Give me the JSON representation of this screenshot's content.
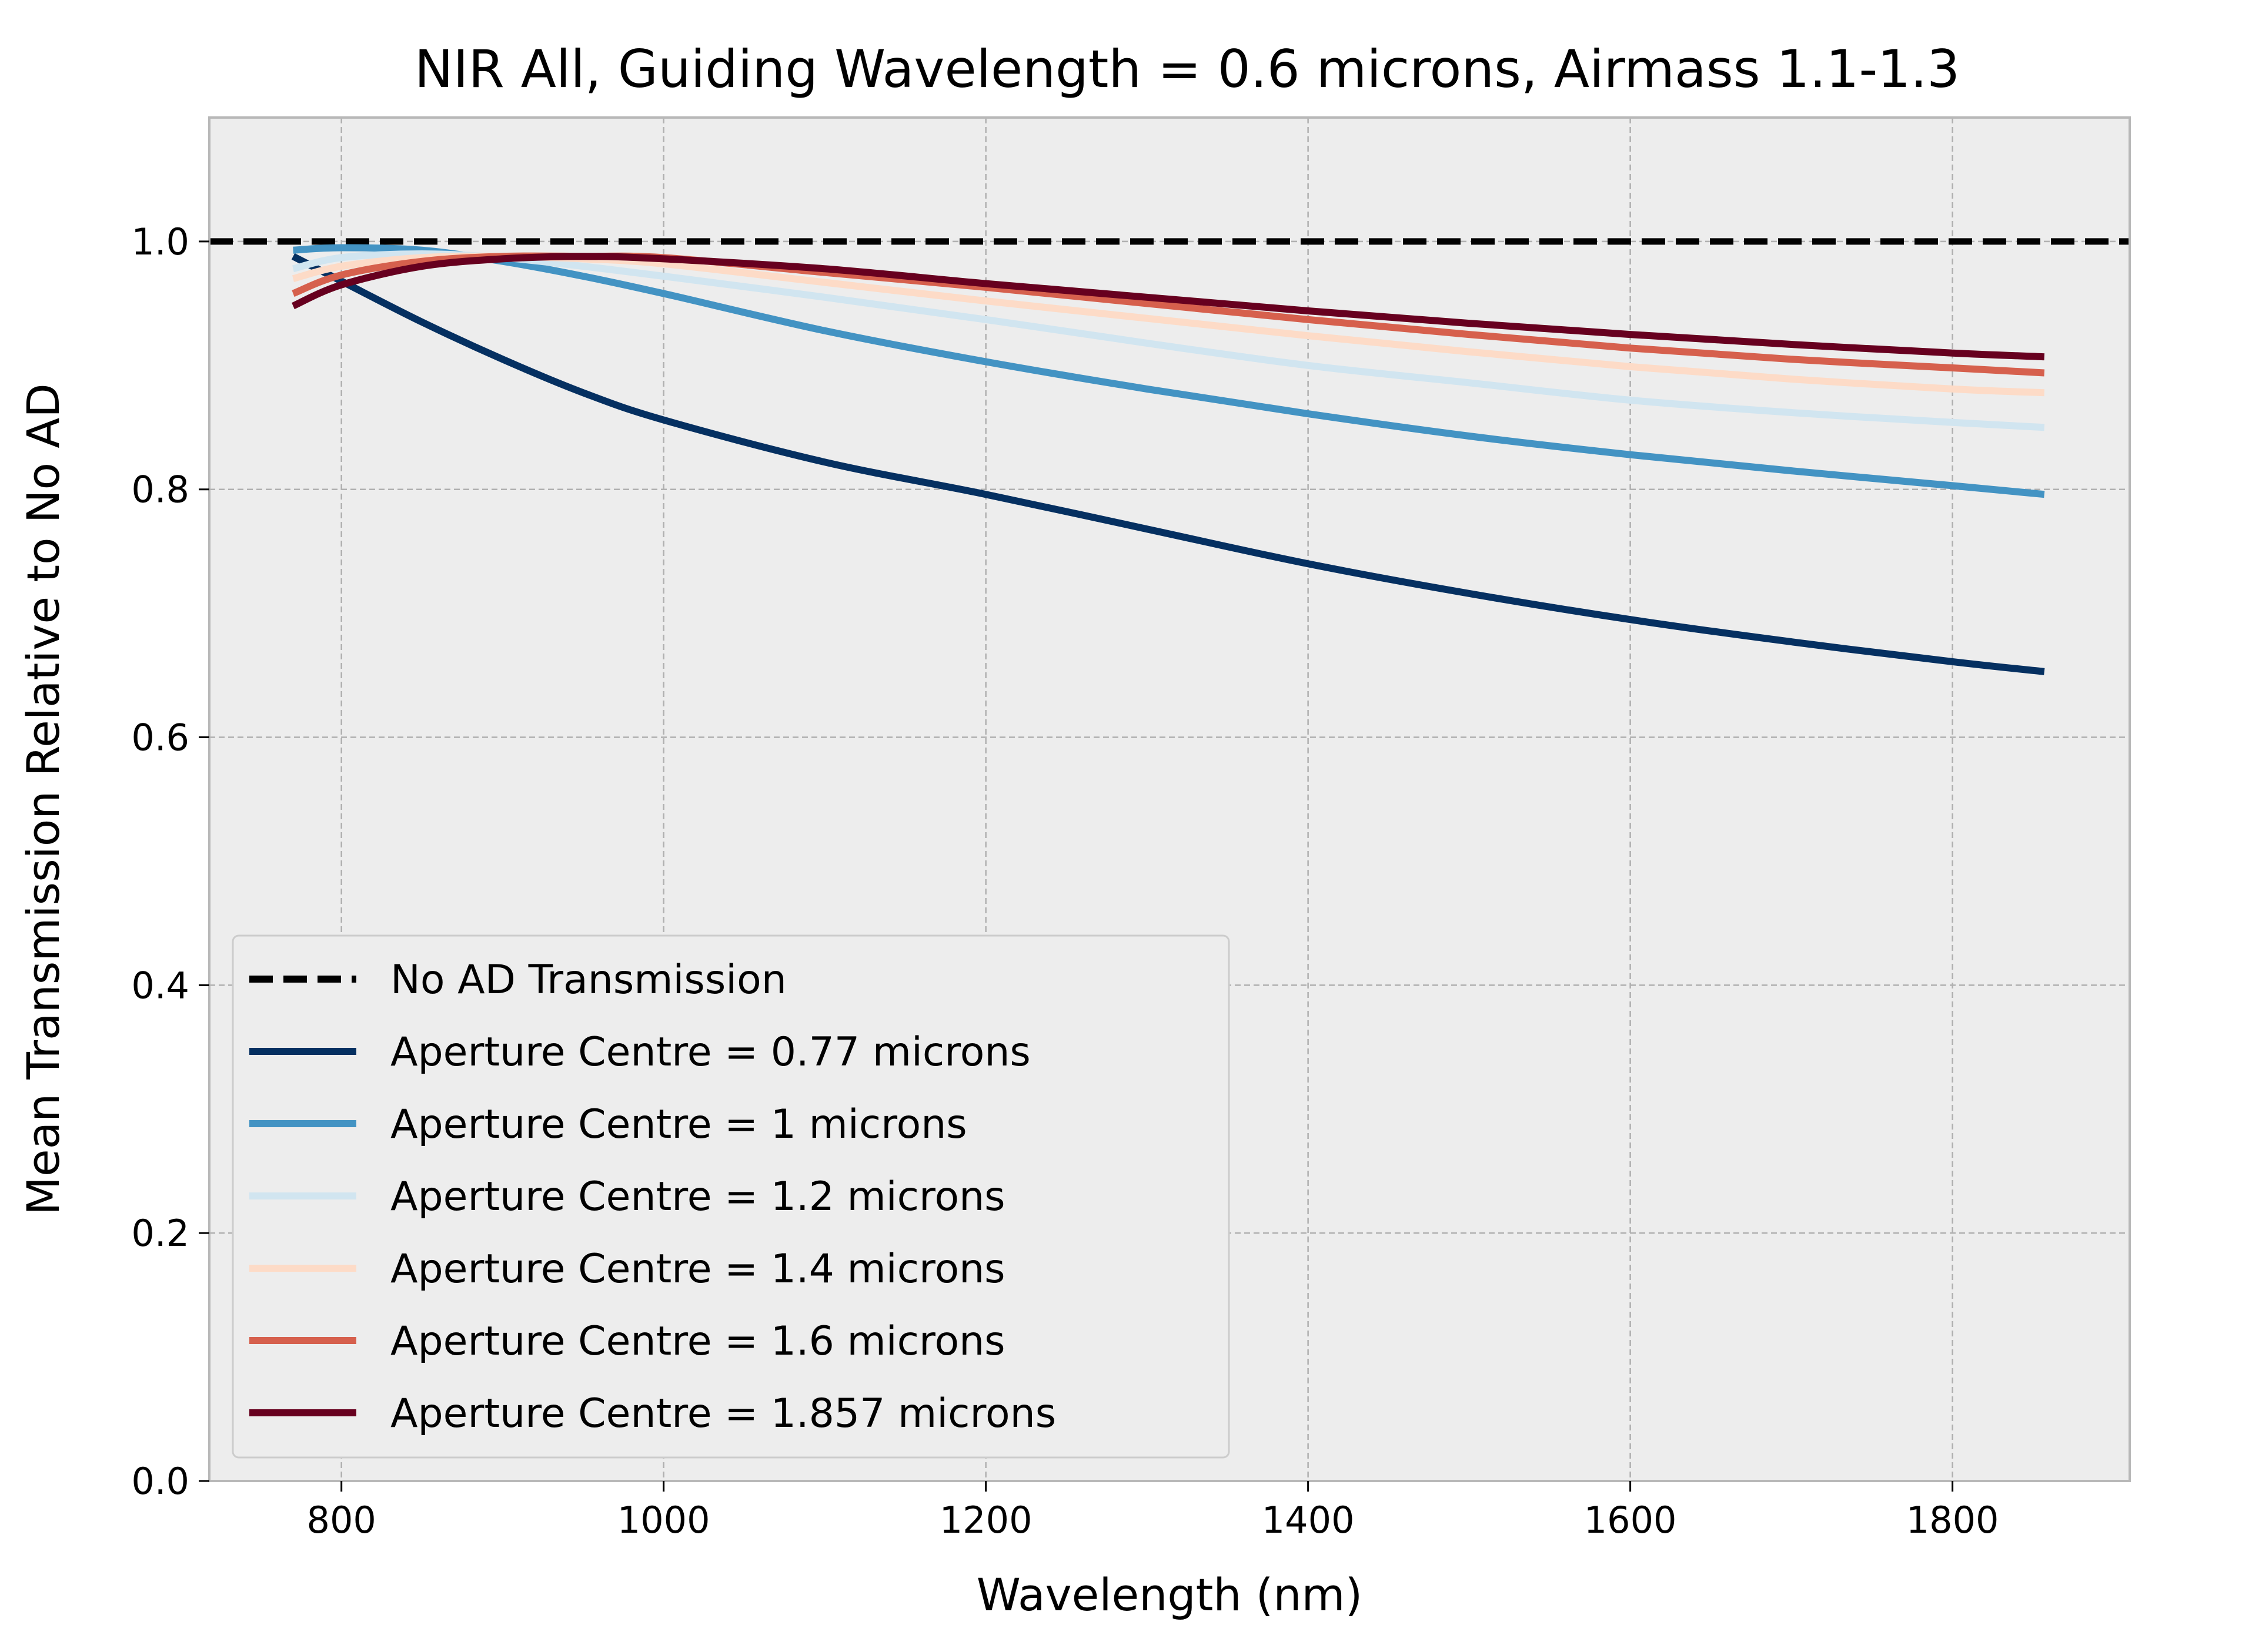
{
  "chart_data": {
    "type": "line",
    "title": "NIR All, Guiding Wavelength = 0.6 microns, Airmass 1.1-1.3",
    "xlabel": "Wavelength (nm)",
    "ylabel": "Mean Transmission Relative to No AD",
    "xlim": [
      718,
      1910
    ],
    "ylim": [
      0.0,
      1.1
    ],
    "xticks": [
      800,
      1000,
      1200,
      1400,
      1600,
      1800
    ],
    "yticks": [
      0.0,
      0.2,
      0.4,
      0.6,
      0.8,
      1.0
    ],
    "xtick_labels": [
      "800",
      "1000",
      "1200",
      "1400",
      "1600",
      "1800"
    ],
    "ytick_labels": [
      "0.0",
      "0.2",
      "0.4",
      "0.6",
      "0.8",
      "1.0"
    ],
    "grid": true,
    "legend_position": "lower-left",
    "reference_line": {
      "name": "No AD Transmission",
      "y": 1.0,
      "color": "#000000",
      "style": "dashed"
    },
    "x": [
      770,
      800,
      850,
      900,
      950,
      1000,
      1100,
      1200,
      1300,
      1400,
      1500,
      1600,
      1700,
      1800,
      1857
    ],
    "series": [
      {
        "name": "Aperture Centre = 0.77 microns",
        "color": "#053061",
        "values": [
          0.988,
          0.968,
          0.935,
          0.905,
          0.878,
          0.856,
          0.822,
          0.796,
          0.768,
          0.74,
          0.716,
          0.695,
          0.677,
          0.661,
          0.653
        ]
      },
      {
        "name": "Aperture Centre = 1 microns",
        "color": "#4393c3",
        "values": [
          0.993,
          0.995,
          0.993,
          0.984,
          0.972,
          0.958,
          0.928,
          0.903,
          0.881,
          0.861,
          0.843,
          0.828,
          0.815,
          0.803,
          0.796
        ]
      },
      {
        "name": "Aperture Centre = 1.2 microns",
        "color": "#d1e5f0",
        "values": [
          0.978,
          0.987,
          0.99,
          0.987,
          0.98,
          0.972,
          0.955,
          0.937,
          0.918,
          0.9,
          0.886,
          0.872,
          0.862,
          0.854,
          0.85
        ]
      },
      {
        "name": "Aperture Centre = 1.4 microns",
        "color": "#fddbc7",
        "values": [
          0.97,
          0.98,
          0.987,
          0.988,
          0.986,
          0.982,
          0.967,
          0.952,
          0.938,
          0.924,
          0.911,
          0.899,
          0.889,
          0.881,
          0.878
        ]
      },
      {
        "name": "Aperture Centre = 1.6 microns",
        "color": "#d6604d",
        "values": [
          0.958,
          0.973,
          0.984,
          0.988,
          0.988,
          0.987,
          0.975,
          0.963,
          0.95,
          0.937,
          0.925,
          0.914,
          0.905,
          0.898,
          0.894
        ]
      },
      {
        "name": "Aperture Centre = 1.857 microns",
        "color": "#67001f",
        "values": [
          0.948,
          0.965,
          0.98,
          0.986,
          0.988,
          0.986,
          0.978,
          0.966,
          0.955,
          0.944,
          0.934,
          0.925,
          0.917,
          0.91,
          0.907
        ]
      }
    ]
  }
}
